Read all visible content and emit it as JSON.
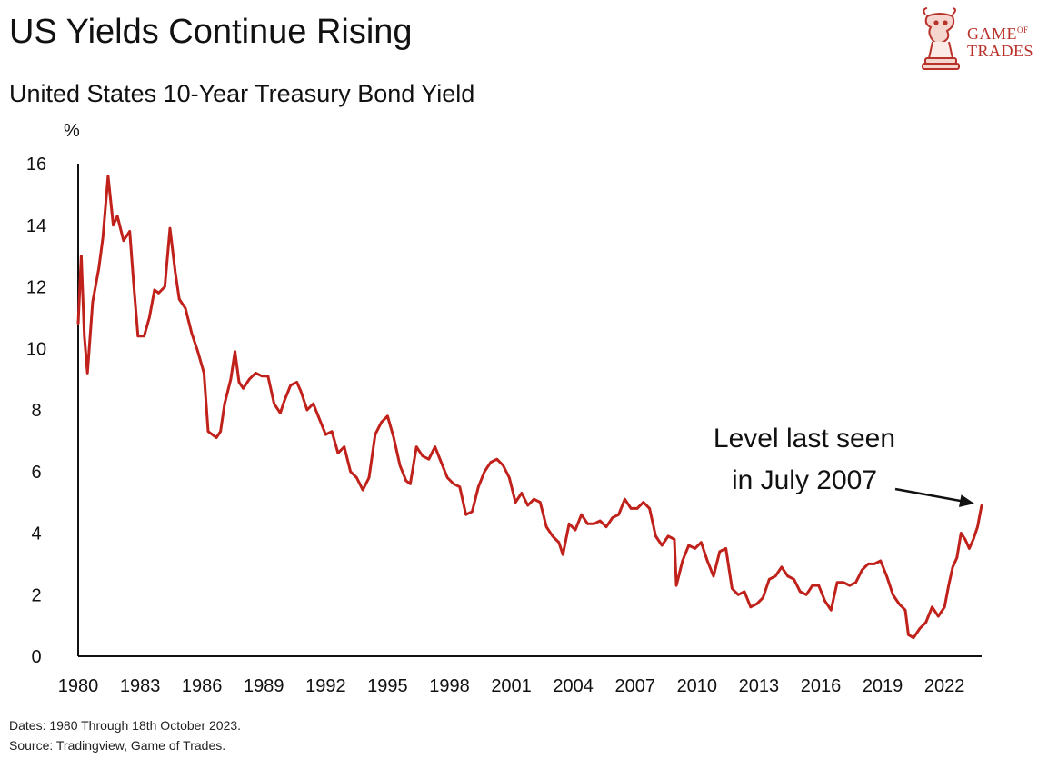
{
  "header": {
    "title": "US Yields Continue Rising",
    "subtitle": "United States 10-Year Treasury Bond Yield"
  },
  "logo": {
    "line1": "GAME",
    "of": "OF",
    "line2": "TRADES"
  },
  "footer": {
    "dates": "Dates: 1980 Through 18th October 2023.",
    "source": "Source: Tradingview, Game of Trades."
  },
  "colors": {
    "series": "#c0211b",
    "axis": "#111111",
    "logo": "#b8322a"
  },
  "chart_data": {
    "type": "line",
    "title": "United States 10-Year Treasury Bond Yield",
    "ylabel": "%",
    "xlabel": "",
    "xlim": [
      1980,
      2023.8
    ],
    "ylim": [
      0,
      16
    ],
    "grid": false,
    "yticks": [
      0,
      2,
      4,
      6,
      8,
      10,
      12,
      14,
      16
    ],
    "xticks": [
      1980,
      1983,
      1986,
      1989,
      1992,
      1995,
      1998,
      2001,
      2004,
      2007,
      2010,
      2013,
      2016,
      2019,
      2022
    ],
    "annotation": {
      "lines": [
        "Level last seen",
        "in July 2007"
      ],
      "points_to": [
        2023.8,
        4.9
      ]
    },
    "series": [
      {
        "name": "10-Year Treasury Yield",
        "x": [
          1980.0,
          1980.15,
          1980.3,
          1980.45,
          1980.7,
          1981.0,
          1981.2,
          1981.45,
          1981.7,
          1981.9,
          1982.2,
          1982.5,
          1982.7,
          1982.9,
          1983.2,
          1983.45,
          1983.7,
          1983.9,
          1984.2,
          1984.45,
          1984.7,
          1984.9,
          1985.2,
          1985.5,
          1985.8,
          1986.1,
          1986.3,
          1986.5,
          1986.7,
          1986.9,
          1987.1,
          1987.4,
          1987.6,
          1987.8,
          1988.0,
          1988.3,
          1988.6,
          1988.9,
          1989.2,
          1989.5,
          1989.8,
          1990.0,
          1990.3,
          1990.6,
          1990.8,
          1991.1,
          1991.4,
          1991.7,
          1992.0,
          1992.3,
          1992.6,
          1992.9,
          1993.2,
          1993.5,
          1993.8,
          1994.1,
          1994.4,
          1994.7,
          1995.0,
          1995.3,
          1995.6,
          1995.9,
          1996.1,
          1996.4,
          1996.7,
          1997.0,
          1997.3,
          1997.6,
          1997.9,
          1998.2,
          1998.5,
          1998.8,
          1999.1,
          1999.4,
          1999.7,
          2000.0,
          2000.3,
          2000.6,
          2000.9,
          2001.2,
          2001.5,
          2001.8,
          2002.1,
          2002.4,
          2002.7,
          2003.0,
          2003.3,
          2003.5,
          2003.8,
          2004.1,
          2004.4,
          2004.7,
          2005.0,
          2005.3,
          2005.6,
          2005.9,
          2006.2,
          2006.5,
          2006.8,
          2007.1,
          2007.4,
          2007.7,
          2008.0,
          2008.3,
          2008.6,
          2008.9,
          2009.0,
          2009.3,
          2009.6,
          2009.9,
          2010.2,
          2010.5,
          2010.8,
          2011.1,
          2011.4,
          2011.7,
          2012.0,
          2012.3,
          2012.6,
          2012.9,
          2013.2,
          2013.5,
          2013.8,
          2014.1,
          2014.4,
          2014.7,
          2015.0,
          2015.3,
          2015.6,
          2015.9,
          2016.2,
          2016.5,
          2016.8,
          2017.1,
          2017.4,
          2017.7,
          2018.0,
          2018.3,
          2018.6,
          2018.9,
          2019.2,
          2019.5,
          2019.8,
          2020.1,
          2020.25,
          2020.5,
          2020.8,
          2021.1,
          2021.4,
          2021.7,
          2022.0,
          2022.2,
          2022.4,
          2022.6,
          2022.8,
          2023.0,
          2023.2,
          2023.4,
          2023.6,
          2023.8
        ],
        "y": [
          10.8,
          13.0,
          10.4,
          9.2,
          11.5,
          12.6,
          13.6,
          15.6,
          14.0,
          14.3,
          13.5,
          13.8,
          12.0,
          10.4,
          10.4,
          11.0,
          11.9,
          11.8,
          12.0,
          13.9,
          12.5,
          11.6,
          11.3,
          10.5,
          9.9,
          9.2,
          7.3,
          7.2,
          7.1,
          7.3,
          8.2,
          9.0,
          9.9,
          8.9,
          8.7,
          9.0,
          9.2,
          9.1,
          9.1,
          8.2,
          7.9,
          8.3,
          8.8,
          8.9,
          8.6,
          8.0,
          8.2,
          7.7,
          7.2,
          7.3,
          6.6,
          6.8,
          6.0,
          5.8,
          5.4,
          5.8,
          7.2,
          7.6,
          7.8,
          7.1,
          6.2,
          5.7,
          5.6,
          6.8,
          6.5,
          6.4,
          6.8,
          6.3,
          5.8,
          5.6,
          5.5,
          4.6,
          4.7,
          5.5,
          6.0,
          6.3,
          6.4,
          6.2,
          5.8,
          5.0,
          5.3,
          4.9,
          5.1,
          5.0,
          4.2,
          3.9,
          3.7,
          3.3,
          4.3,
          4.1,
          4.6,
          4.3,
          4.3,
          4.4,
          4.2,
          4.5,
          4.6,
          5.1,
          4.8,
          4.8,
          5.0,
          4.8,
          3.9,
          3.6,
          3.9,
          3.8,
          2.3,
          3.1,
          3.6,
          3.5,
          3.7,
          3.1,
          2.6,
          3.4,
          3.5,
          2.2,
          2.0,
          2.1,
          1.6,
          1.7,
          1.9,
          2.5,
          2.6,
          2.9,
          2.6,
          2.5,
          2.1,
          2.0,
          2.3,
          2.3,
          1.8,
          1.5,
          2.4,
          2.4,
          2.3,
          2.4,
          2.8,
          3.0,
          3.0,
          3.1,
          2.6,
          2.0,
          1.7,
          1.5,
          0.7,
          0.6,
          0.9,
          1.1,
          1.6,
          1.3,
          1.6,
          2.3,
          2.9,
          3.2,
          4.0,
          3.8,
          3.5,
          3.8,
          4.2,
          4.9
        ]
      }
    ]
  }
}
